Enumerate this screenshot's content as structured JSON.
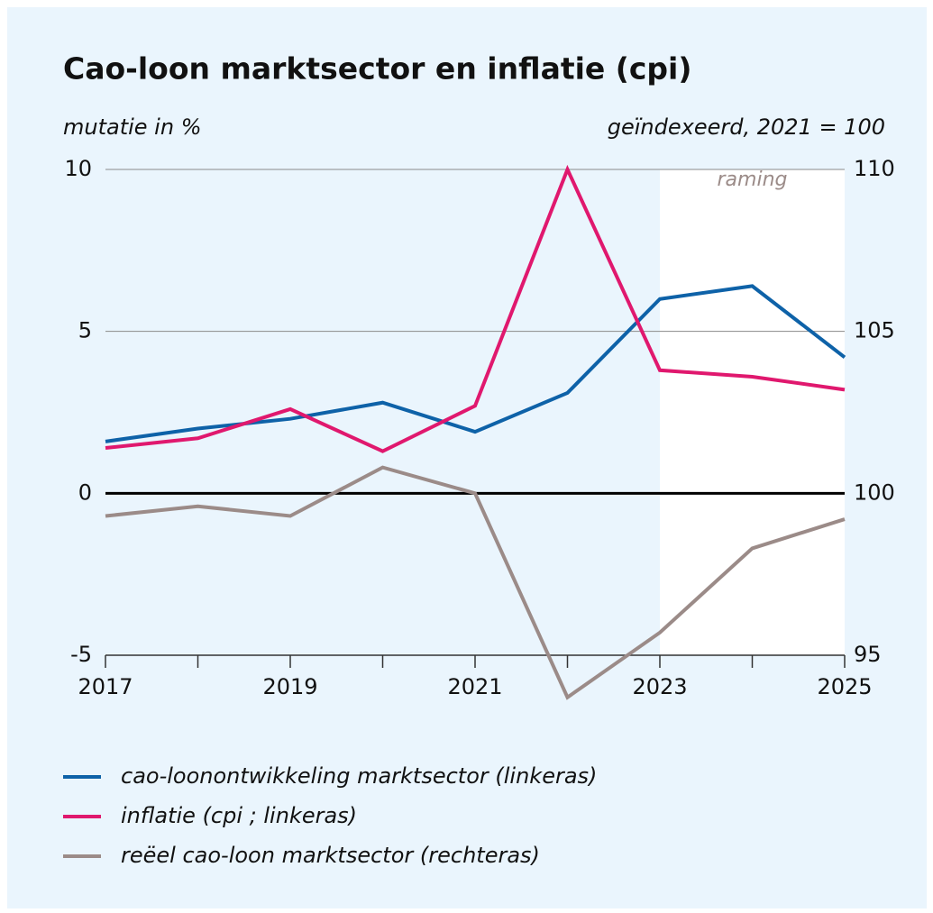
{
  "chart_data": {
    "type": "line",
    "title": "Cao-loon marktsector en inflatie (cpi)",
    "ylabel": "mutatie in %",
    "y2label": "geïndexeerd, 2021 = 100",
    "forecast": {
      "label": "raming",
      "from": 2023,
      "to": 2025,
      "color": "#ffffff"
    },
    "x": [
      2017,
      2018,
      2019,
      2020,
      2021,
      2022,
      2023,
      2024,
      2025
    ],
    "xlim": [
      2017,
      2025
    ],
    "xticks": [
      2017,
      2019,
      2021,
      2023,
      2025
    ],
    "xminor_ticks": [
      2018,
      2020,
      2022,
      2024
    ],
    "ylim": [
      -5,
      10
    ],
    "yticks": [
      -5,
      0,
      5,
      10
    ],
    "y2lim": [
      95,
      110
    ],
    "y2ticks": [
      95,
      100,
      105,
      110
    ],
    "grid": true,
    "series": [
      {
        "name": "cao-loonontwikkeling marktsector (linkeras)",
        "color": "#0e62a8",
        "values": [
          1.6,
          2.0,
          2.3,
          2.8,
          1.9,
          3.1,
          6.0,
          6.4,
          4.2
        ]
      },
      {
        "name": "inflatie (cpi ; linkeras)",
        "color": "#e0186e",
        "values": [
          1.4,
          1.7,
          2.6,
          1.3,
          2.7,
          10.0,
          3.8,
          3.6,
          3.2
        ]
      },
      {
        "name": "reëel cao-loon marktsector (rechteras)",
        "color": "#9b8b88",
        "axis": "y2",
        "values": [
          99.3,
          99.6,
          99.3,
          100.8,
          100,
          93.7,
          95.7,
          98.3,
          99.2
        ]
      }
    ]
  }
}
